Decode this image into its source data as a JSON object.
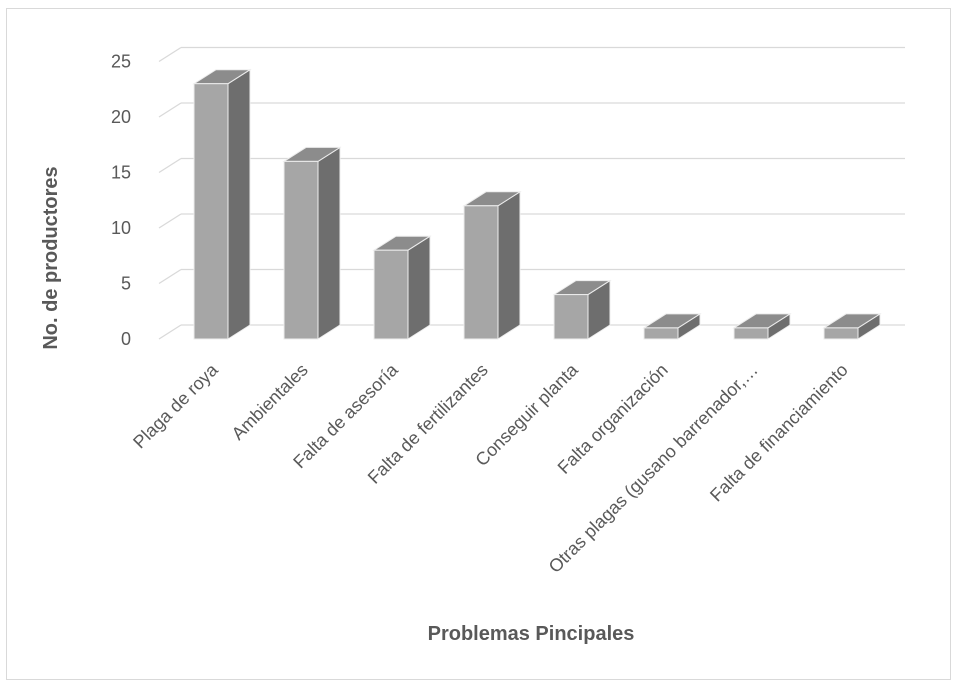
{
  "chart_data": {
    "type": "bar",
    "title": "",
    "xlabel": "Problemas Pincipales",
    "ylabel": "No. de productores",
    "categories": [
      "Plaga de roya",
      "Ambientales",
      "Falta de asesoría",
      "Falta de fertilizantes",
      "Conseguir planta",
      "Falta organización",
      "Otras plagas (gusano barrenador,…",
      "Falta de financiamiento"
    ],
    "values": [
      23,
      16,
      8,
      12,
      4,
      1,
      1,
      1
    ],
    "ylim": [
      0,
      25
    ],
    "yticks": [
      0,
      5,
      10,
      15,
      20,
      25
    ],
    "grid": true,
    "legend": "none",
    "style": "3d-column",
    "colors": {
      "front": "#a6a6a6",
      "side": "#6e6e6e",
      "top": "#8c8c8c",
      "grid": "#d9d9d9",
      "text": "#595959"
    }
  }
}
